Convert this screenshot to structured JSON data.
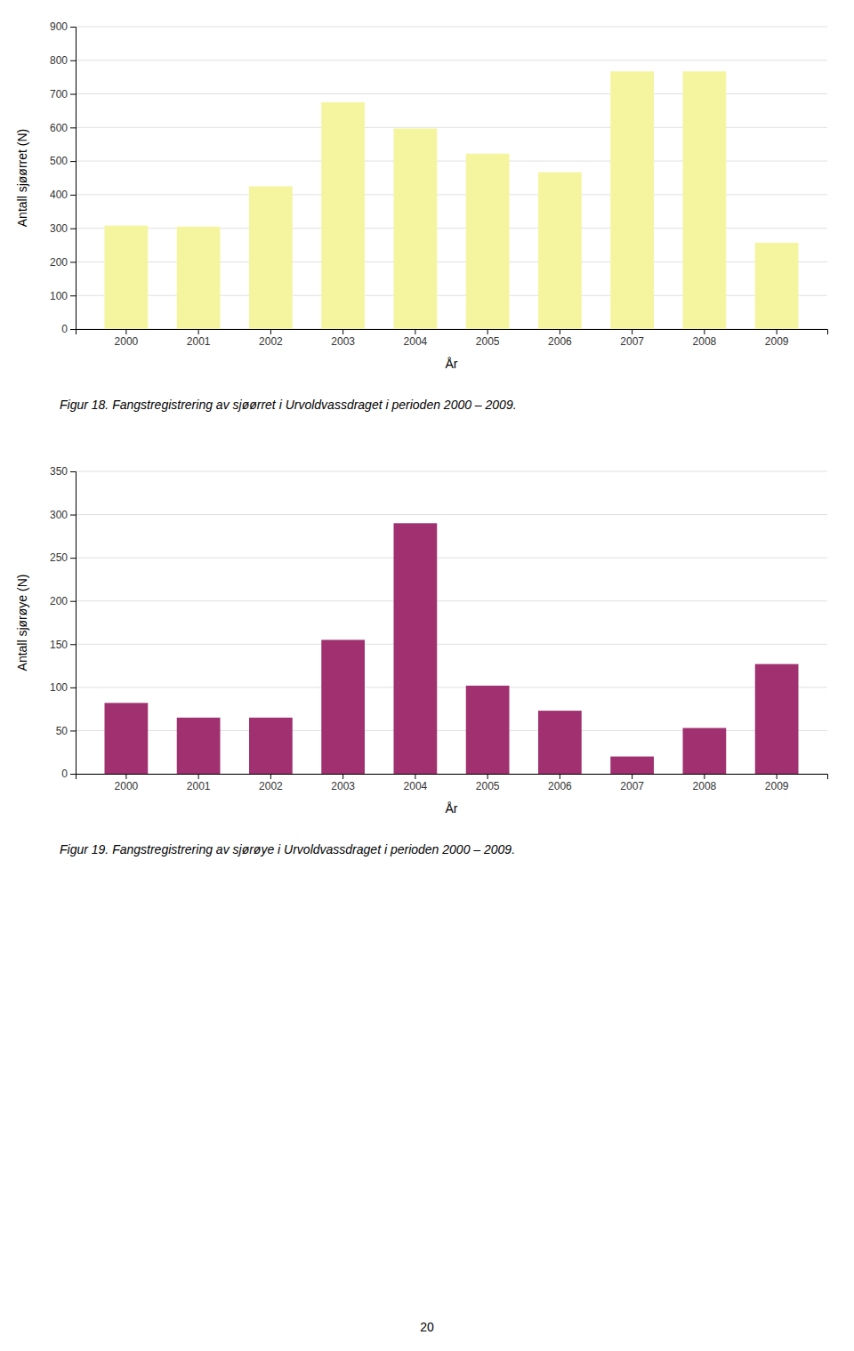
{
  "chart_data": [
    {
      "type": "bar",
      "title": "Figur 18. Fangstregistrering av sjøørret i Urvoldvassdraget i perioden 2000 – 2009.",
      "categories": [
        "2000",
        "2001",
        "2002",
        "2003",
        "2004",
        "2005",
        "2006",
        "2007",
        "2008",
        "2009"
      ],
      "values": [
        308,
        305,
        425,
        675,
        597,
        522,
        467,
        767,
        767,
        257
      ],
      "color": "#f5f5a0",
      "xlabel": "År",
      "ylabel": "Antall sjøørret (N)",
      "ylim": [
        0,
        900
      ],
      "yticks": [
        0,
        100,
        200,
        300,
        400,
        500,
        600,
        700,
        800,
        900
      ],
      "grid": true
    },
    {
      "type": "bar",
      "title": "Figur 19. Fangstregistrering av sjørøye i Urvoldvassdraget i perioden 2000 – 2009.",
      "categories": [
        "2000",
        "2001",
        "2002",
        "2003",
        "2004",
        "2005",
        "2006",
        "2007",
        "2008",
        "2009"
      ],
      "values": [
        82,
        65,
        65,
        155,
        290,
        102,
        73,
        20,
        53,
        127
      ],
      "color": "#a03070",
      "xlabel": "År",
      "ylabel": "Antall sjørøye (N)",
      "ylim": [
        0,
        350
      ],
      "yticks": [
        0,
        50,
        100,
        150,
        200,
        250,
        300,
        350
      ],
      "grid": true
    }
  ],
  "page_number": "20"
}
